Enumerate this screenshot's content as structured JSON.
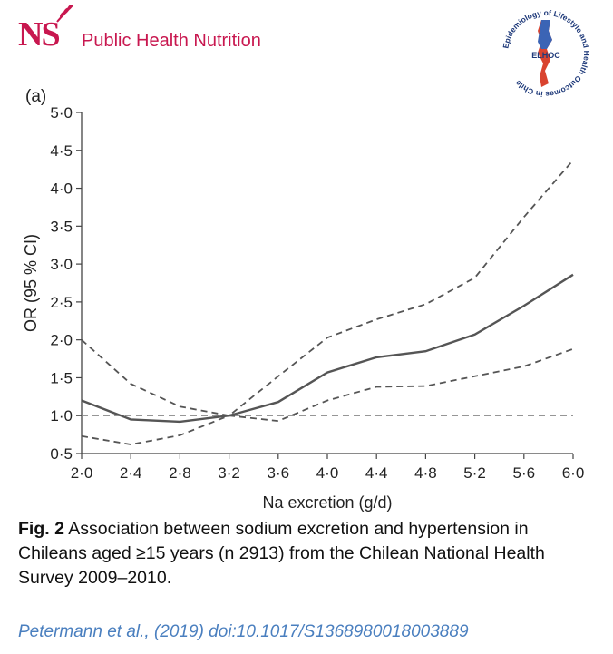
{
  "header": {
    "logo_text": "NS",
    "journal_name": "Public Health Nutrition",
    "elhoc_ring_text": "Epidemiology of Lifestyle and Health Outcomes in Chile",
    "elhoc_center": "ELHOC"
  },
  "panel_label": "(a)",
  "chart_data": {
    "type": "line",
    "xlabel": "Na excretion (g/d)",
    "ylabel": "OR (95 % CI)",
    "x_ticks": [
      "2·0",
      "2·4",
      "2·8",
      "3·2",
      "3·6",
      "4·0",
      "4·4",
      "4·8",
      "5·2",
      "5·6",
      "6·0"
    ],
    "y_ticks": [
      "0·5",
      "1·0",
      "1·5",
      "2·0",
      "2·5",
      "3·0",
      "3·5",
      "4·0",
      "4·5",
      "5·0"
    ],
    "xlim": [
      2.0,
      6.0
    ],
    "ylim": [
      0.5,
      5.0
    ],
    "x": [
      2.0,
      2.4,
      2.8,
      3.2,
      3.6,
      4.0,
      4.4,
      4.8,
      5.2,
      5.6,
      6.0
    ],
    "series": [
      {
        "role": "estimate",
        "style": "solid",
        "values": [
          1.2,
          0.95,
          0.92,
          1.0,
          1.18,
          1.57,
          1.77,
          1.85,
          2.07,
          2.45,
          2.86
        ]
      },
      {
        "role": "upper",
        "style": "dashed",
        "values": [
          2.0,
          1.42,
          1.12,
          1.0,
          1.52,
          2.03,
          2.27,
          2.47,
          2.82,
          3.62,
          4.37
        ]
      },
      {
        "role": "lower",
        "style": "dashed",
        "values": [
          0.73,
          0.62,
          0.74,
          1.0,
          0.93,
          1.2,
          1.38,
          1.39,
          1.52,
          1.65,
          1.88
        ]
      }
    ],
    "reference_line": 1.0,
    "colors": {
      "line": "#555555",
      "reference": "#888888",
      "axis": "#444444"
    }
  },
  "caption": {
    "fig_label": "Fig. 2",
    "text": " Association between sodium excretion and hypertension in Chileans aged ≥15 years (n 2913) from the Chilean National Health Survey 2009–2010."
  },
  "citation": "Petermann et al., (2019) doi:10.1017/S1368980018003889"
}
